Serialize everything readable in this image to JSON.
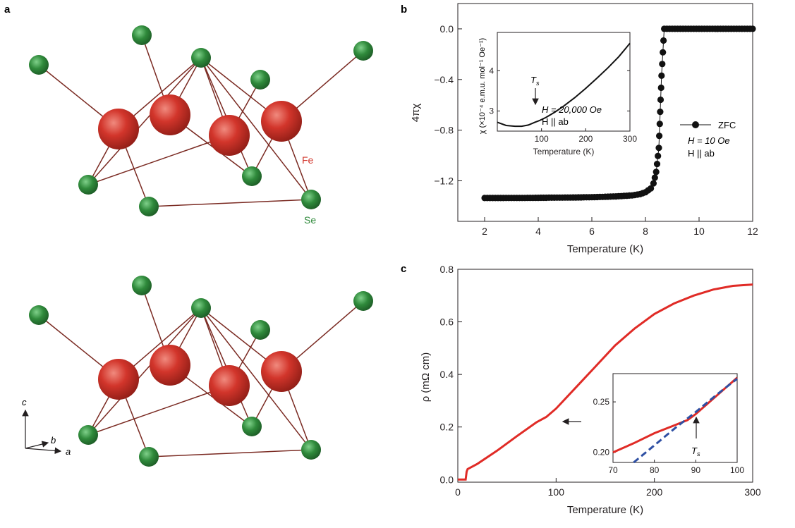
{
  "figure": {
    "panels": [
      {
        "letter": "a"
      },
      {
        "letter": "b"
      },
      {
        "letter": "c"
      }
    ],
    "structure": {
      "fe_label": "Fe",
      "se_label": "Se",
      "axes": {
        "c": "c",
        "b": "b",
        "a": "a"
      },
      "colors": {
        "fe": "#d2352b",
        "se": "#2f8a3b",
        "bond": "#7a2a22"
      }
    }
  },
  "chart_data": [
    {
      "id": "b",
      "type": "scatter",
      "title": "",
      "xlabel": "Temperature (K)",
      "ylabel": "4πχ",
      "xlim": [
        1,
        12
      ],
      "ylim": [
        -1.52,
        0.2
      ],
      "xticks": [
        "2",
        "4",
        "6",
        "8",
        "10",
        "12"
      ],
      "yticks": [
        "0.0",
        "−0.4",
        "−0.8",
        "−1.2"
      ],
      "legend": {
        "marker": "ZFC",
        "line1": "H = 10 Oe",
        "line2": "H || ab",
        "position": "right"
      },
      "series": [
        {
          "name": "ZFC",
          "color": "#111111",
          "points": [
            [
              2.0,
              -1.336
            ],
            [
              2.5,
              -1.336
            ],
            [
              3.0,
              -1.335
            ],
            [
              3.5,
              -1.335
            ],
            [
              4.0,
              -1.334
            ],
            [
              4.5,
              -1.333
            ],
            [
              5.0,
              -1.332
            ],
            [
              5.5,
              -1.331
            ],
            [
              6.0,
              -1.329
            ],
            [
              6.5,
              -1.326
            ],
            [
              7.0,
              -1.322
            ],
            [
              7.5,
              -1.315
            ],
            [
              7.8,
              -1.305
            ],
            [
              8.0,
              -1.29
            ],
            [
              8.2,
              -1.26
            ],
            [
              8.3,
              -1.22
            ],
            [
              8.4,
              -1.13
            ],
            [
              8.5,
              -0.94
            ],
            [
              8.6,
              -0.37
            ],
            [
              8.7,
              0.0
            ],
            [
              9.0,
              0.0
            ],
            [
              9.5,
              0.0
            ],
            [
              10.0,
              0.0
            ],
            [
              10.5,
              0.0
            ],
            [
              11.0,
              0.0
            ],
            [
              11.5,
              0.0
            ],
            [
              12.0,
              0.0
            ]
          ]
        }
      ],
      "inset": {
        "type": "line",
        "xlabel": "Temperature (K)",
        "ylabel": "χ (×10⁻⁴ e.m.u. mol⁻¹ Oe⁻¹)",
        "xlim": [
          0,
          300
        ],
        "ylim": [
          2.5,
          4.95
        ],
        "xticks": [
          "100",
          "200",
          "300"
        ],
        "yticks": [
          "3",
          "4"
        ],
        "annotation": "T",
        "annotation_sub": "s",
        "field_text": "H = 20,000 Oe",
        "orientation_text": "H || ab",
        "series": [
          {
            "color": "#111111",
            "x": [
              0,
              20,
              40,
              55,
              70,
              85,
              95,
              110,
              130,
              150,
              175,
              200,
              225,
              250,
              275,
              300
            ],
            "y": [
              2.72,
              2.64,
              2.62,
              2.62,
              2.65,
              2.72,
              2.76,
              2.84,
              2.97,
              3.12,
              3.33,
              3.56,
              3.81,
              4.07,
              4.35,
              4.68
            ]
          }
        ]
      }
    },
    {
      "id": "c",
      "type": "line",
      "title": "",
      "xlabel": "Temperature (K)",
      "ylabel": "ρ (mΩ cm)",
      "xlim": [
        0,
        300
      ],
      "ylim": [
        -0.01,
        0.8
      ],
      "xticks": [
        "0",
        "100",
        "200",
        "300"
      ],
      "yticks": [
        "0.0",
        "0.2",
        "0.4",
        "0.6",
        "0.8"
      ],
      "series": [
        {
          "color": "#e02b26",
          "x": [
            0,
            8,
            9,
            10,
            20,
            40,
            60,
            80,
            90,
            100,
            120,
            140,
            160,
            180,
            200,
            220,
            240,
            260,
            280,
            300
          ],
          "y": [
            0.0,
            0.0,
            0.03,
            0.04,
            0.06,
            0.11,
            0.165,
            0.218,
            0.238,
            0.27,
            0.35,
            0.43,
            0.51,
            0.575,
            0.63,
            0.67,
            0.7,
            0.723,
            0.737,
            0.742
          ]
        }
      ],
      "inset": {
        "type": "line",
        "xlim": [
          70,
          100
        ],
        "ylim": [
          0.19,
          0.278
        ],
        "xticks": [
          "70",
          "80",
          "90",
          "100"
        ],
        "yticks": [
          "0.20",
          "0.25"
        ],
        "annotation": "T",
        "annotation_sub": "s",
        "series": [
          {
            "color": "#e02b26",
            "style": "solid",
            "x": [
              70,
              75,
              80,
              85,
              88,
              90,
              95,
              100
            ],
            "y": [
              0.2,
              0.209,
              0.219,
              0.227,
              0.232,
              0.238,
              0.256,
              0.274
            ]
          },
          {
            "color": "#2e4fa3",
            "style": "dashed",
            "x": [
              75,
              80,
              85,
              90,
              95,
              100
            ],
            "y": [
              0.19,
              0.207,
              0.224,
              0.24,
              0.257,
              0.273
            ]
          }
        ]
      }
    }
  ]
}
